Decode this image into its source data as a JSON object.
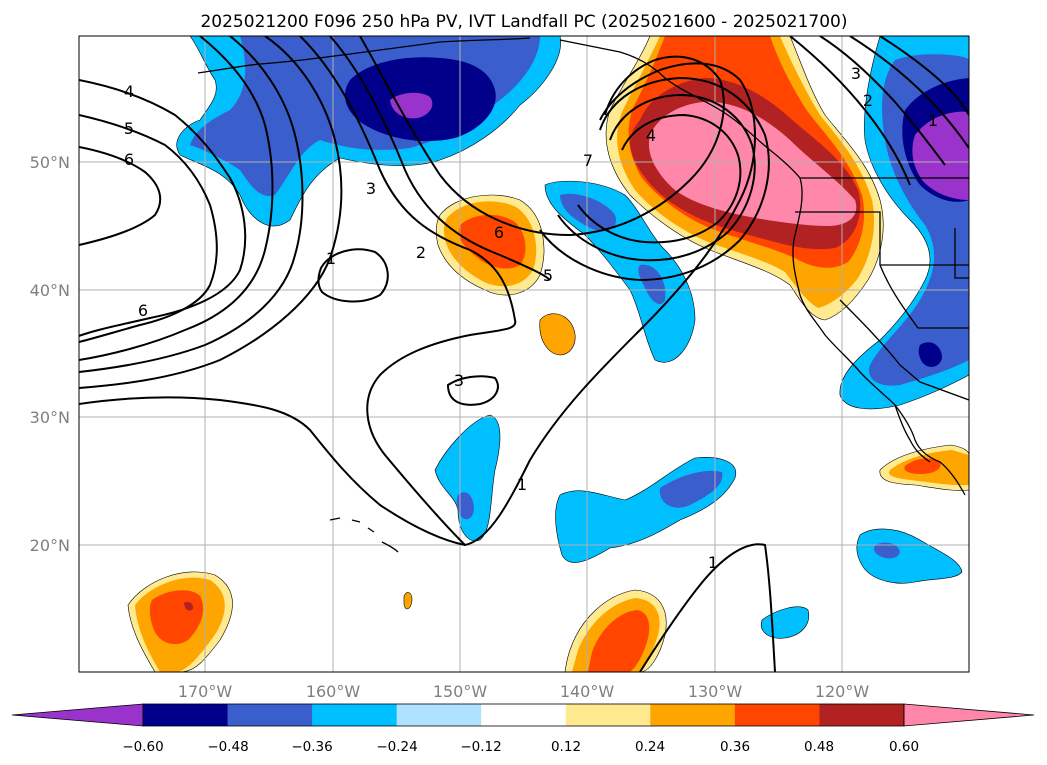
{
  "title": "2025021200 F096 250 hPa PV, IVT Landfall PC (2025021600 - 2025021700)",
  "map": {
    "lat_labels": [
      "50°N",
      "40°N",
      "30°N",
      "20°N"
    ],
    "lon_labels": [
      "170°W",
      "160°W",
      "150°W",
      "140°W",
      "130°W",
      "120°W"
    ],
    "contour_labels": [
      "4",
      "5",
      "6",
      "3",
      "1",
      "2",
      "6",
      "3",
      "7",
      "4",
      "6",
      "5",
      "3",
      "2",
      "1",
      "1",
      "1"
    ]
  },
  "colorbar": {
    "ticks": [
      "−0.60",
      "−0.48",
      "−0.36",
      "−0.24",
      "−0.12",
      "0.12",
      "0.24",
      "0.36",
      "0.48",
      "0.60"
    ],
    "colors": [
      "#9933cc",
      "#00008b",
      "#3a5fcd",
      "#00bfff",
      "#b0e2ff",
      "#ffffff",
      "#ffea8f",
      "#ffa500",
      "#ff4500",
      "#b22222",
      "#ff88aa"
    ]
  }
}
